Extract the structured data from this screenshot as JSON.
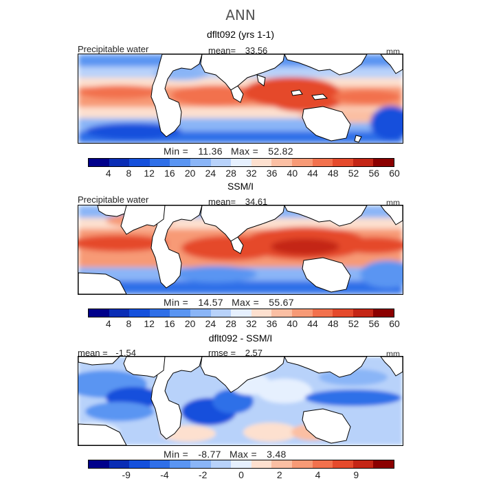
{
  "figure": {
    "title": "ANN"
  },
  "chart_data": [
    {
      "type": "heatmap",
      "title": "dflt092 (yrs 1-1)",
      "variable": "Precipitable water",
      "units": "mm",
      "mean_label": "mean=",
      "mean": "33.56",
      "min_label": "Min =",
      "min": "11.36",
      "max_label": "Max =",
      "max": "52.82",
      "colorbar_ticks": [
        "4",
        "8",
        "12",
        "16",
        "20",
        "24",
        "28",
        "32",
        "36",
        "40",
        "44",
        "48",
        "52",
        "56",
        "60"
      ],
      "colors": [
        "#00008b",
        "#0a2db5",
        "#1450dc",
        "#2f6fe8",
        "#5a95f2",
        "#8ab5f7",
        "#b8d2fa",
        "#e6f0fe",
        "#fde0cf",
        "#fbbfa3",
        "#f79a76",
        "#f2714d",
        "#e54a2c",
        "#c42616",
        "#8b0000"
      ]
    },
    {
      "type": "heatmap",
      "title": "SSM/I",
      "variable": "Precipitable water",
      "units": "mm",
      "mean_label": "mean=",
      "mean": "34.61",
      "min_label": "Min =",
      "min": "14.57",
      "max_label": "Max =",
      "max": "55.67",
      "colorbar_ticks": [
        "4",
        "8",
        "12",
        "16",
        "20",
        "24",
        "28",
        "32",
        "36",
        "40",
        "44",
        "48",
        "52",
        "56",
        "60"
      ],
      "colors": [
        "#00008b",
        "#0a2db5",
        "#1450dc",
        "#2f6fe8",
        "#5a95f2",
        "#8ab5f7",
        "#b8d2fa",
        "#e6f0fe",
        "#fde0cf",
        "#fbbfa3",
        "#f79a76",
        "#f2714d",
        "#e54a2c",
        "#c42616",
        "#8b0000"
      ]
    },
    {
      "type": "heatmap",
      "title": "dflt092 - SSM/I",
      "units": "mm",
      "mean_label": "mean =",
      "mean": "-1.54",
      "rmse_label": "rmse =",
      "rmse": "2.57",
      "min_label": "Min =",
      "min": "-8.77",
      "max_label": "Max =",
      "max": "3.48",
      "colorbar_ticks": [
        "-9",
        "-4",
        "-2",
        "0",
        "2",
        "4",
        "9"
      ],
      "colors": [
        "#00008b",
        "#0a2db5",
        "#1450dc",
        "#2f6fe8",
        "#5a95f2",
        "#8ab5f7",
        "#b8d2fa",
        "#e6f0fe",
        "#fde0cf",
        "#fbbfa3",
        "#f79a76",
        "#f2714d",
        "#e54a2c",
        "#c42616",
        "#8b0000"
      ]
    }
  ]
}
